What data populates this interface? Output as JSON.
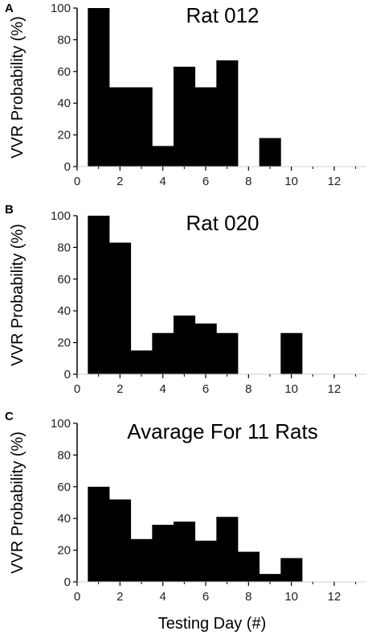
{
  "chart_data": [
    {
      "type": "bar",
      "panel": "A",
      "title": "Rat 012",
      "ylabel": "VVR Probability (%)",
      "xlabel": "",
      "x": [
        1,
        2,
        3,
        4,
        5,
        6,
        7,
        8,
        9
      ],
      "values": [
        100,
        50,
        50,
        13,
        63,
        50,
        67,
        0,
        18
      ],
      "xlim": [
        0,
        13.5
      ],
      "ylim": [
        0,
        100
      ],
      "xticks": [
        0,
        2,
        4,
        6,
        8,
        10,
        12
      ],
      "yticks": [
        0,
        20,
        40,
        60,
        80,
        100
      ]
    },
    {
      "type": "bar",
      "panel": "B",
      "title": "Rat 020",
      "ylabel": "VVR Probability (%)",
      "xlabel": "",
      "x": [
        1,
        2,
        3,
        4,
        5,
        6,
        7,
        8,
        9,
        10
      ],
      "values": [
        100,
        83,
        15,
        26,
        37,
        32,
        26,
        0,
        0,
        26
      ],
      "xlim": [
        0,
        13.5
      ],
      "ylim": [
        0,
        100
      ],
      "xticks": [
        0,
        2,
        4,
        6,
        8,
        10,
        12
      ],
      "yticks": [
        0,
        20,
        40,
        60,
        80,
        100
      ]
    },
    {
      "type": "bar",
      "panel": "C",
      "title": "Avarage For 11 Rats",
      "ylabel": "VVR Probability (%)",
      "xlabel": "Testing Day (#)",
      "x": [
        1,
        2,
        3,
        4,
        5,
        6,
        7,
        8,
        9,
        10
      ],
      "values": [
        60,
        52,
        27,
        36,
        38,
        26,
        41,
        19,
        5,
        15
      ],
      "xlim": [
        0,
        13.5
      ],
      "ylim": [
        0,
        100
      ],
      "xticks": [
        0,
        2,
        4,
        6,
        8,
        10,
        12
      ],
      "yticks": [
        0,
        20,
        40,
        60,
        80,
        100
      ]
    }
  ],
  "colors": {
    "bar": "#000000",
    "axis": "#000000",
    "text": "#000000"
  }
}
